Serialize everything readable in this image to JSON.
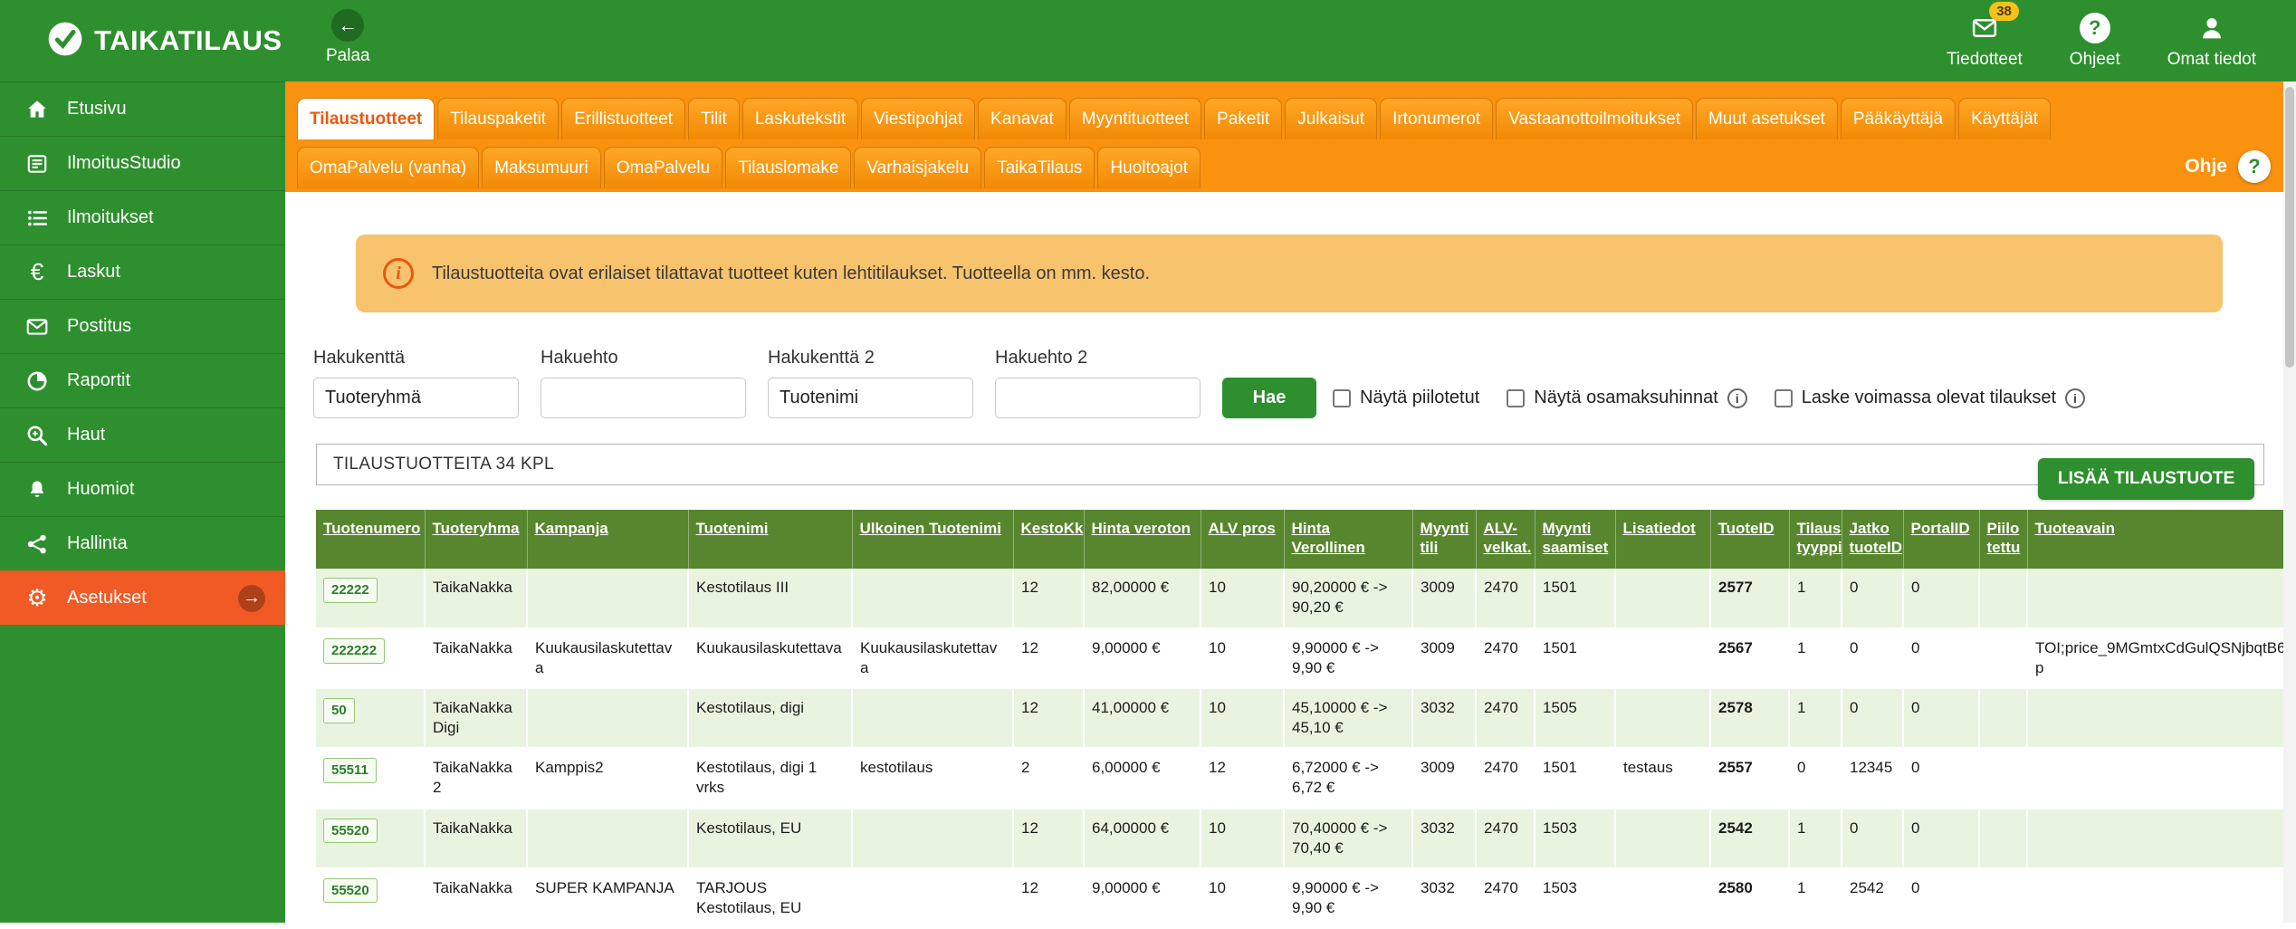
{
  "brand": {
    "logo_text": "TAIKATILAUS"
  },
  "topbar": {
    "back": {
      "label": "Palaa"
    },
    "actions": {
      "announcements": {
        "label": "Tiedotteet",
        "badge": "38"
      },
      "help": {
        "label": "Ohjeet"
      },
      "profile": {
        "label": "Omat tiedot"
      }
    }
  },
  "sidebar": {
    "items": [
      {
        "label": "Etusivu",
        "icon": "home-icon",
        "active": false
      },
      {
        "label": "IlmoitusStudio",
        "icon": "news-icon",
        "active": false
      },
      {
        "label": "Ilmoitukset",
        "icon": "list-icon",
        "active": false
      },
      {
        "label": "Laskut",
        "icon": "euro-icon",
        "active": false
      },
      {
        "label": "Postitus",
        "icon": "envelope-icon",
        "active": false
      },
      {
        "label": "Raportit",
        "icon": "pie-chart-icon",
        "active": false
      },
      {
        "label": "Haut",
        "icon": "search-icon",
        "active": false
      },
      {
        "label": "Huomiot",
        "icon": "bell-icon",
        "active": false
      },
      {
        "label": "Hallinta",
        "icon": "share-nodes-icon",
        "active": false
      },
      {
        "label": "Asetukset",
        "icon": "gear-icon",
        "active": true
      }
    ]
  },
  "tabs": {
    "row1": [
      "Tilaustuotteet",
      "Tilauspaketit",
      "Erillistuotteet",
      "Tilit",
      "Laskutekstit",
      "Viestipohjat",
      "Kanavat",
      "Myyntituotteet",
      "Paketit",
      "Julkaisut",
      "Irtonumerot",
      "Vastaanottoilmoitukset",
      "Muut asetukset",
      "Pääkäyttäjä",
      "Käyttäjät"
    ],
    "row2": [
      "OmaPalvelu (vanha)",
      "Maksumuuri",
      "OmaPalvelu",
      "Tilauslomake",
      "Varhaisjakelu",
      "TaikaTilaus",
      "Huoltoajot"
    ],
    "active": "Tilaustuotteet",
    "help_label": "Ohje"
  },
  "banner": {
    "text": "Tilaustuotteita ovat erilaiset tilattavat tuotteet kuten lehtitilaukset. Tuotteella on mm. kesto."
  },
  "search": {
    "fields": [
      {
        "label": "Hakukenttä",
        "value": "Tuoteryhmä"
      },
      {
        "label": "Hakuehto",
        "value": ""
      },
      {
        "label": "Hakukenttä 2",
        "value": "Tuotenimi"
      },
      {
        "label": "Hakuehto 2",
        "value": ""
      }
    ],
    "submit_label": "Hae",
    "checkboxes": [
      {
        "label": "Näytä piilotetut",
        "checked": false,
        "has_help": false
      },
      {
        "label": "Näytä osamaksuhinnat",
        "checked": false,
        "has_help": true
      },
      {
        "label": "Laske voimassa olevat tilaukset",
        "checked": false,
        "has_help": true
      }
    ]
  },
  "table": {
    "count_label": "TILAUSTUOTTEITA 34 KPL",
    "add_button_label": "LISÄÄ TILAUSTUOTE",
    "columns": [
      {
        "label": "Tuotenumero",
        "style": "chip"
      },
      {
        "label": "Tuoteryhma"
      },
      {
        "label": "Kampanja"
      },
      {
        "label": "Tuotenimi"
      },
      {
        "label": "Ulkoinen Tuotenimi"
      },
      {
        "label": "KestoKk"
      },
      {
        "label": "Hinta veroton"
      },
      {
        "label": "ALV pros"
      },
      {
        "label": "Hinta Verollinen"
      },
      {
        "label": "Myynti tili"
      },
      {
        "label": "ALV-velkat."
      },
      {
        "label": "Myynti saamiset"
      },
      {
        "label": "Lisatiedot"
      },
      {
        "label": "TuoteID",
        "style": "bold"
      },
      {
        "label": "Tilaus tyyppi"
      },
      {
        "label": "Jatko tuoteID"
      },
      {
        "label": "PortalID"
      },
      {
        "label": "Piilo tettu"
      },
      {
        "label": "Tuoteavain"
      }
    ],
    "rows": [
      [
        "22222",
        "TaikaNakka",
        "",
        "Kestotilaus III",
        "",
        "12",
        "82,00000 €",
        "10",
        "90,20000 € -> 90,20 €",
        "3009",
        "2470",
        "1501",
        "",
        "2577",
        "1",
        "0",
        "0",
        "",
        ""
      ],
      [
        "222222",
        "TaikaNakka",
        "Kuukausilaskutettava",
        "Kuukausilaskutettava",
        "Kuukausilaskutettava",
        "12",
        "9,00000 €",
        "10",
        "9,90000 € -> 9,90 €",
        "3009",
        "2470",
        "1501",
        "",
        "2567",
        "1",
        "0",
        "0",
        "",
        "TOI;price_9MGmtxCdGulQSNjbqtB6p"
      ],
      [
        "50",
        "TaikaNakka Digi",
        "",
        "Kestotilaus, digi",
        "",
        "12",
        "41,00000 €",
        "10",
        "45,10000 € -> 45,10 €",
        "3032",
        "2470",
        "1505",
        "",
        "2578",
        "1",
        "0",
        "0",
        "",
        ""
      ],
      [
        "55511",
        "TaikaNakka2",
        "Kamppis2",
        "Kestotilaus, digi 1 vrks",
        "kestotilaus",
        "2",
        "6,00000 €",
        "12",
        "6,72000 € -> 6,72 €",
        "3009",
        "2470",
        "1501",
        "testaus",
        "2557",
        "0",
        "12345",
        "0",
        "",
        ""
      ],
      [
        "55520",
        "TaikaNakka",
        "",
        "Kestotilaus, EU",
        "",
        "12",
        "64,00000 €",
        "10",
        "70,40000 € -> 70,40 €",
        "3032",
        "2470",
        "1503",
        "",
        "2542",
        "1",
        "0",
        "0",
        "",
        ""
      ],
      [
        "55520",
        "TaikaNakka",
        "SUPER KAMPANJA",
        "TARJOUS Kestotilaus, EU",
        "",
        "12",
        "9,00000 €",
        "10",
        "9,90000 € -> 9,90 €",
        "3032",
        "2470",
        "1503",
        "",
        "2580",
        "1",
        "2542",
        "0",
        "",
        ""
      ]
    ]
  },
  "colors": {
    "primary_green": "#2e8f2e",
    "active_orange": "#f15a24",
    "tab_orange": "#f8920f",
    "active_tab_text": "#e8590c",
    "banner_orange": "#f8c36d",
    "table_header_green": "#57862f",
    "row_alt_green": "#e9f4e0",
    "badge_yellow": "#f6c21a"
  }
}
